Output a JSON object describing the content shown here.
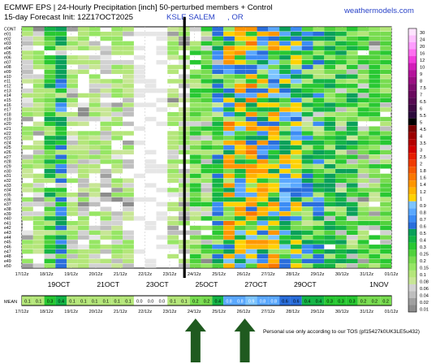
{
  "header": {
    "title": "ECMWF EPS | 24-Hourly Precipitation [inch]  50-perturbed members + Control",
    "init": "15-day Forecast Init: 12Z17OCT2025",
    "location_a": "KSLE SALEM",
    "location_b": ", OR",
    "brand": "weathermodels.com"
  },
  "footer_note": "Personal use only according to our TOS (pf15427k0UK3LE5u432)",
  "colors": {
    "frame": "#000000",
    "grid": "#cccccc",
    "vertical_marker": "#000000",
    "arrow": "#1f5a1f",
    "brand": "#2a43c8",
    "location": "#2a43c8"
  },
  "chart_data": {
    "type": "heatmap",
    "title": "ECMWF EPS | 24-Hourly Precipitation [inch]  50-perturbed members + Control",
    "units": "inch",
    "members": [
      "CONT",
      "e01",
      "e02",
      "e03",
      "e04",
      "e05",
      "e06",
      "e07",
      "e08",
      "e09",
      "e10",
      "e11",
      "e12",
      "e13",
      "e14",
      "e15",
      "e16",
      "e17",
      "e18",
      "e19",
      "e20",
      "e21",
      "e22",
      "e23",
      "e24",
      "e25",
      "e26",
      "e27",
      "e28",
      "e29",
      "e30",
      "e31",
      "e32",
      "e33",
      "e34",
      "e35",
      "e36",
      "e37",
      "e38",
      "e39",
      "e40",
      "e41",
      "e42",
      "e43",
      "e44",
      "e45",
      "e46",
      "e47",
      "e48",
      "e49",
      "e50"
    ],
    "time_labels": [
      "17/12z",
      "18/12z",
      "19/12z",
      "20/12z",
      "21/12z",
      "22/12z",
      "23/12z",
      "24/12z",
      "25/12z",
      "26/12z",
      "27/12z",
      "28/12z",
      "29/12z",
      "30/12z",
      "31/12z",
      "01/12z"
    ],
    "day_labels": [
      {
        "label": "19OCT",
        "at": 1.5
      },
      {
        "label": "21OCT",
        "at": 3.5
      },
      {
        "label": "23OCT",
        "at": 5.5
      },
      {
        "label": "25OCT",
        "at": 7.5
      },
      {
        "label": "27OCT",
        "at": 9.5
      },
      {
        "label": "29OCT",
        "at": 11.5
      },
      {
        "label": "1NOV",
        "at": 14.5
      }
    ],
    "mean_label": "MEAN",
    "mean_values": [
      0.1,
      0.1,
      0.3,
      0.4,
      0.1,
      0.1,
      0.1,
      0.1,
      0.1,
      0.1,
      0.0,
      0.0,
      0.0,
      0.1,
      0.1,
      0.2,
      0.2,
      0.4,
      0.8,
      0.8,
      0.9,
      0.8,
      0.8,
      0.6,
      0.6,
      0.4,
      0.4,
      0.3,
      0.3,
      0.3,
      0.2,
      0.2,
      0.2
    ],
    "mean_steps": 33,
    "member_steps": 33,
    "colorbar": {
      "levels": [
        "30",
        "24",
        "20",
        "16",
        "12",
        "10",
        "9",
        "8",
        "7.5",
        "7",
        "6.5",
        "6",
        "5.5",
        "5",
        "4.5",
        "4",
        "3.5",
        "3",
        "2.5",
        "2",
        "1.8",
        "1.6",
        "1.4",
        "1.2",
        "1",
        "0.9",
        "0.8",
        "0.7",
        "0.6",
        "0.5",
        "0.4",
        "0.3",
        "0.25",
        "0.2",
        "0.15",
        "0.1",
        "0.08",
        "0.06",
        "0.04",
        "0.02",
        "0.01"
      ],
      "colors": [
        "#ffe4ff",
        "#ffc2ff",
        "#ff9cff",
        "#ff6ef0",
        "#f23cdc",
        "#d21eb9",
        "#b4149b",
        "#9b0f82",
        "#7e0c6e",
        "#6a0a5e",
        "#560a52",
        "#3f0a44",
        "#2c0a3c",
        "#000000",
        "#7a0000",
        "#9c0000",
        "#b40000",
        "#d20000",
        "#e61e00",
        "#f03c00",
        "#f55a00",
        "#fa7800",
        "#ff9600",
        "#ffb400",
        "#ffd200",
        "#7cc4ff",
        "#5aa8ff",
        "#3c8cf5",
        "#2a6edc",
        "#0aa05a",
        "#14b446",
        "#28c832",
        "#50d23c",
        "#78dc50",
        "#96e664",
        "#b4e67a",
        "#c8e696",
        "#d2d2d2",
        "#bebebe",
        "#a0a0a0",
        "#8c8c8c"
      ]
    },
    "annotations": {
      "vertical_marker_at": 6.6,
      "arrows_at": [
        7.05,
        9.05
      ]
    }
  }
}
